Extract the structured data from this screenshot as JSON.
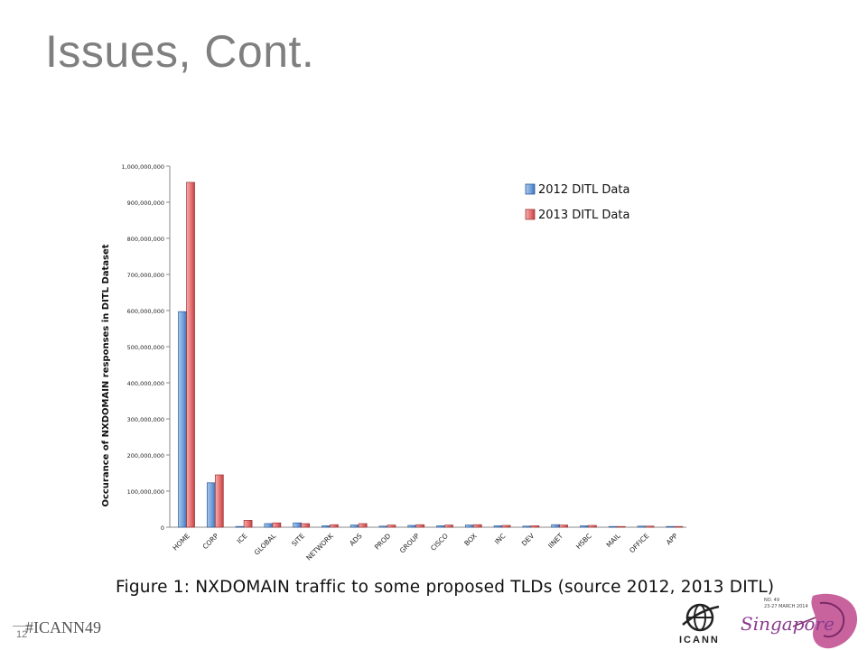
{
  "slide": {
    "title": "Issues, Cont.",
    "caption": "Figure 1: NXDOMAIN traffic to some proposed TLDs (source 2012, 2013 DITL)",
    "hashtag": "#ICANN49",
    "slide_number": "12",
    "logo_text": "ICANN",
    "badge_text": "Singapore",
    "badge_small_text": [
      "NO. 49",
      "23-27 MARCH 2014"
    ]
  },
  "colors": {
    "title": "#7f7f7f",
    "series_2012": "#6f9fd8",
    "series_2013": "#e46c6c"
  },
  "chart_data": {
    "type": "bar",
    "ylabel": "Occurance of NXDOMAIN responses in DITL Dataset",
    "ylim": [
      0,
      1000000000
    ],
    "yticks": [
      "0",
      "100,000,000",
      "200,000,000",
      "300,000,000",
      "400,000,000",
      "500,000,000",
      "600,000,000",
      "700,000,000",
      "800,000,000",
      "900,000,000",
      "1,000,000,000"
    ],
    "categories": [
      "HOME",
      "CORP",
      "ICE",
      "GLOBAL",
      "SITE",
      "NETWORK",
      "ADS",
      "PROD",
      "GROUP",
      "CISCO",
      "BOX",
      "INC",
      "DEV",
      "IINET",
      "HSBC",
      "MAIL",
      "OFFICE",
      "APP"
    ],
    "series": [
      {
        "name": "2012 DITL Data",
        "values": [
          597000000,
          123000000,
          2000000,
          10000000,
          12000000,
          4000000,
          6000000,
          3000000,
          5000000,
          4000000,
          6000000,
          4000000,
          3000000,
          7000000,
          4000000,
          2000000,
          3000000,
          2000000
        ]
      },
      {
        "name": "2013 DITL Data",
        "values": [
          955000000,
          145000000,
          19000000,
          12000000,
          10000000,
          7000000,
          10000000,
          6000000,
          7000000,
          6000000,
          7000000,
          5000000,
          4000000,
          6000000,
          5000000,
          2000000,
          3000000,
          2000000
        ]
      }
    ],
    "legend_position": "top-right",
    "grid": false
  }
}
